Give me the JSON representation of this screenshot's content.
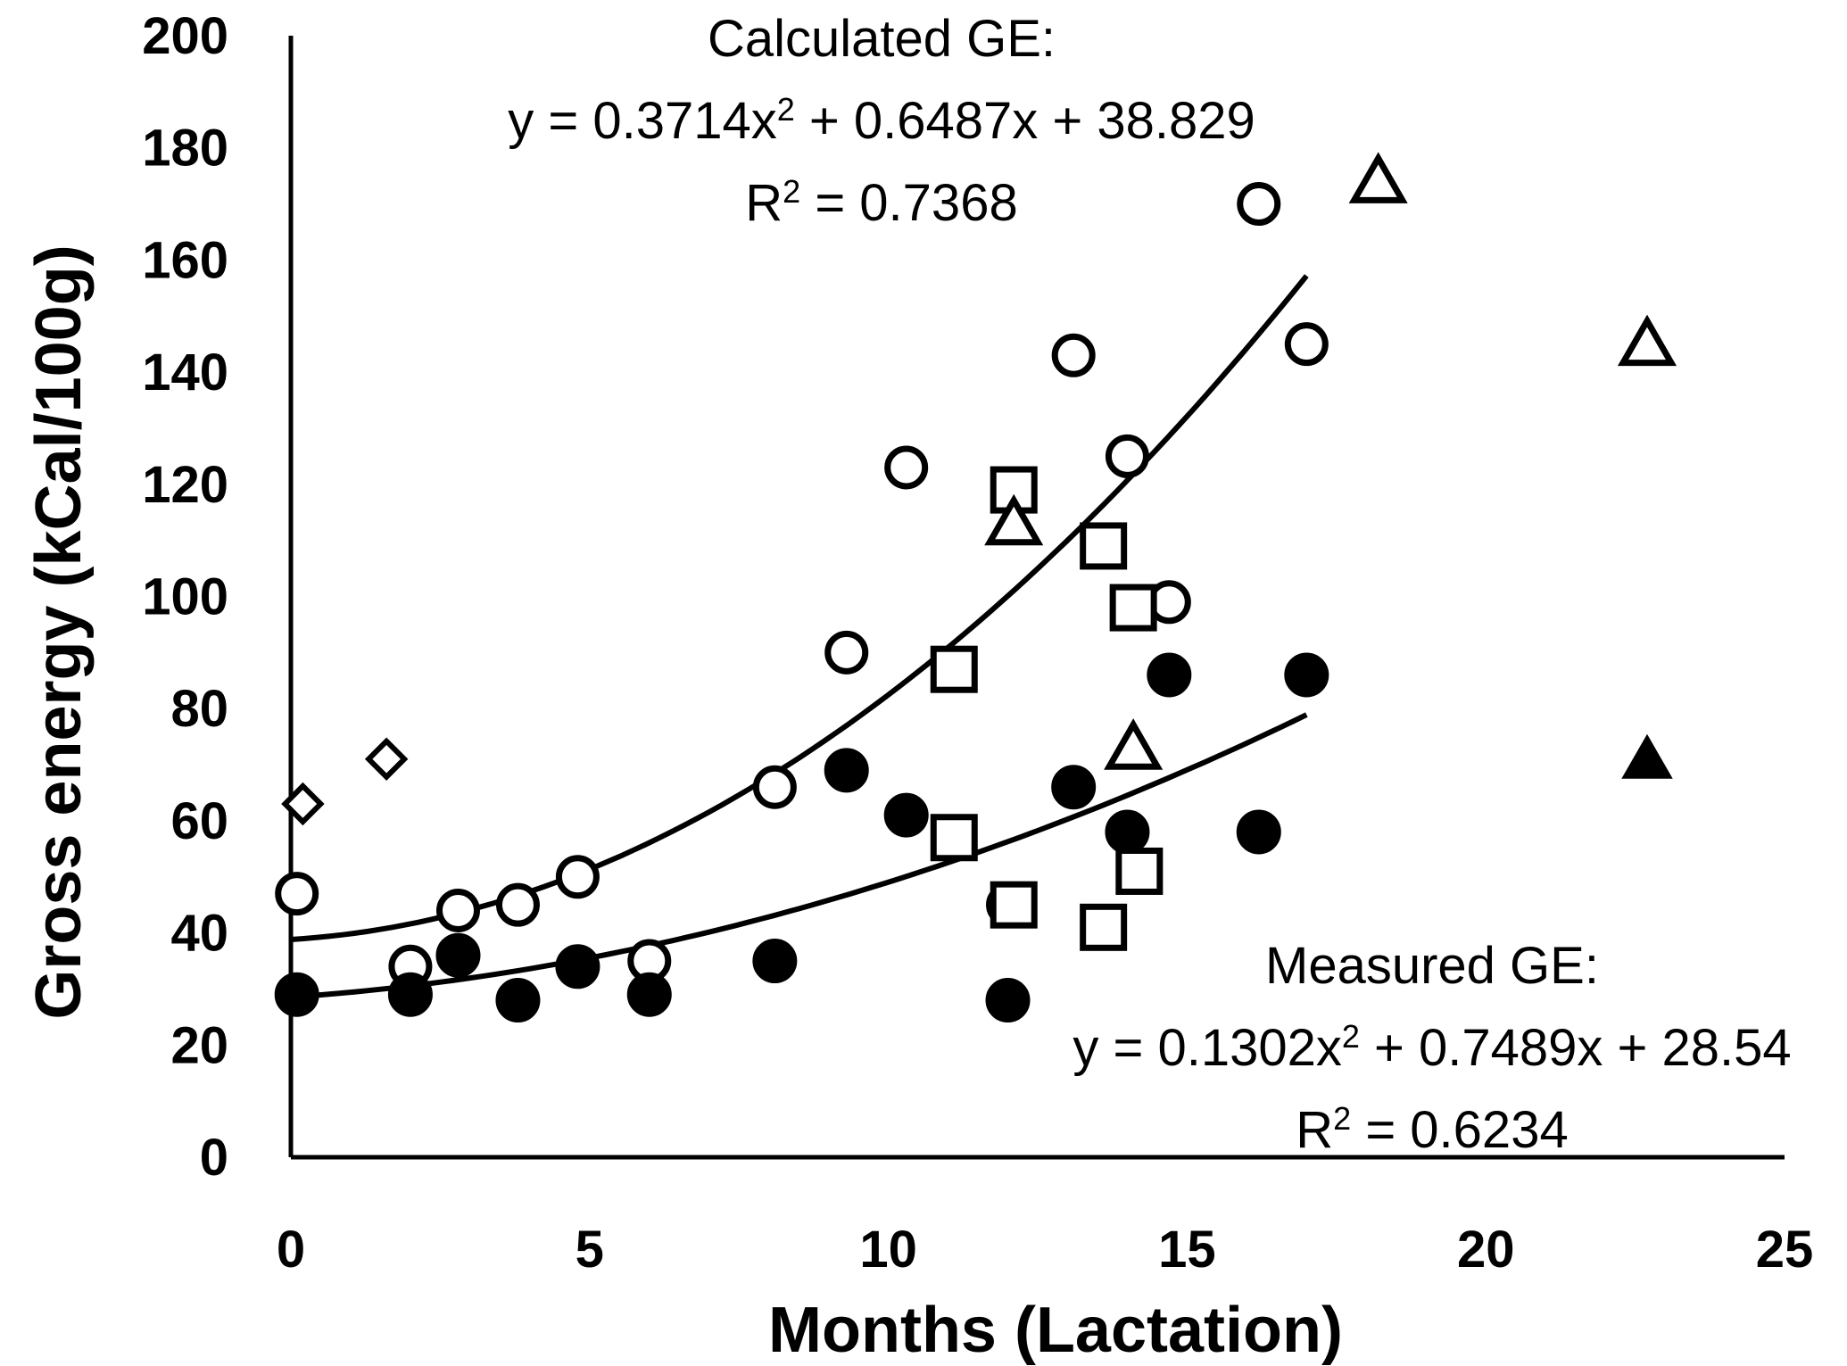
{
  "chart_data": {
    "type": "scatter",
    "title": "",
    "xlabel": "Months (Lactation)",
    "ylabel": "Gross energy (kCal/100g)",
    "xlim": [
      0,
      25
    ],
    "ylim": [
      0,
      200
    ],
    "xticks": [
      0,
      5,
      10,
      15,
      20,
      25
    ],
    "yticks": [
      0,
      20,
      40,
      60,
      80,
      100,
      120,
      140,
      160,
      180,
      200
    ],
    "grid": false,
    "legend": "none",
    "series": [
      {
        "name": "Calculated GE (circles)",
        "marker": "circle-open",
        "points": [
          [
            0.1,
            47
          ],
          [
            2,
            34
          ],
          [
            2.8,
            44
          ],
          [
            3.8,
            45
          ],
          [
            4.8,
            50
          ],
          [
            6,
            35
          ],
          [
            8.1,
            66
          ],
          [
            9.3,
            90
          ],
          [
            10.3,
            123
          ],
          [
            12,
            45
          ],
          [
            13.1,
            143
          ],
          [
            14,
            125
          ],
          [
            14.7,
            99
          ],
          [
            16.2,
            170
          ],
          [
            17,
            145
          ]
        ]
      },
      {
        "name": "Measured GE (filled circles)",
        "marker": "circle-filled",
        "points": [
          [
            0.1,
            29
          ],
          [
            2,
            29
          ],
          [
            2.8,
            36
          ],
          [
            3.8,
            28
          ],
          [
            4.8,
            34
          ],
          [
            6,
            29
          ],
          [
            8.1,
            35
          ],
          [
            9.3,
            69
          ],
          [
            10.3,
            61
          ],
          [
            12,
            28
          ],
          [
            13.1,
            66
          ],
          [
            14,
            58
          ],
          [
            14.7,
            86
          ],
          [
            16.2,
            58
          ],
          [
            17,
            86
          ]
        ]
      },
      {
        "name": "Squares (open)",
        "marker": "square-open",
        "points": [
          [
            11.1,
            87
          ],
          [
            11.1,
            57
          ],
          [
            12.1,
            119
          ],
          [
            12.1,
            45
          ],
          [
            13.6,
            109
          ],
          [
            13.6,
            41
          ],
          [
            14.1,
            98
          ],
          [
            14.2,
            51
          ]
        ]
      },
      {
        "name": "Triangles (open)",
        "marker": "triangle-open",
        "points": [
          [
            12.1,
            113
          ],
          [
            14.1,
            73
          ],
          [
            18.2,
            174
          ],
          [
            22.7,
            145
          ]
        ]
      },
      {
        "name": "Triangles (filled)",
        "marker": "triangle-filled",
        "points": [
          [
            22.7,
            71
          ]
        ]
      },
      {
        "name": "Diamonds (open)",
        "marker": "diamond-open",
        "points": [
          [
            0.2,
            63
          ],
          [
            1.6,
            71
          ]
        ]
      }
    ],
    "trendlines": [
      {
        "name": "Calculated GE fit",
        "a": 0.3714,
        "b": 0.6487,
        "c": 38.829,
        "x_range": [
          0,
          17
        ]
      },
      {
        "name": "Measured GE fit",
        "a": 0.1302,
        "b": 0.7489,
        "c": 28.54,
        "x_range": [
          0,
          17
        ]
      }
    ],
    "annotations": {
      "calculated": {
        "label": "Calculated GE:",
        "eq_prefix": "y = 0.3714x",
        "eq_sup": "2",
        "eq_suffix": " + 0.6487x + 38.829",
        "r2_prefix": "R",
        "r2_sup": "2",
        "r2_suffix": " = 0.7368"
      },
      "measured": {
        "label": "Measured GE:",
        "eq_prefix": "y = 0.1302x",
        "eq_sup": "2",
        "eq_suffix": " + 0.7489x + 28.54",
        "r2_prefix": "R",
        "r2_sup": "2",
        "r2_suffix": " = 0.6234"
      }
    }
  }
}
